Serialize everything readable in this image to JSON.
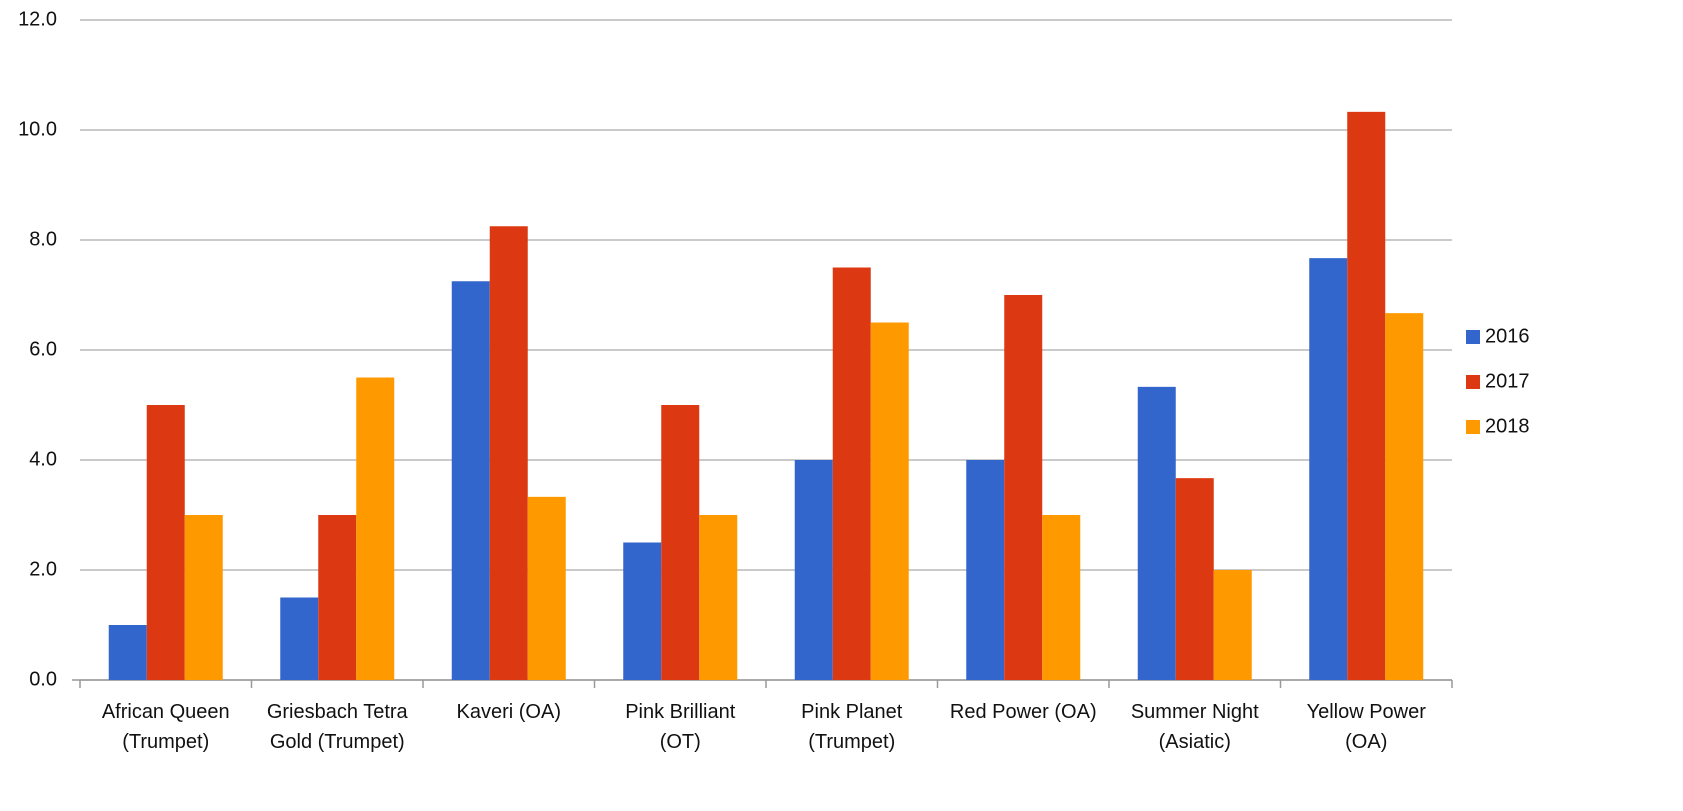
{
  "chart_data": {
    "type": "bar",
    "categories": [
      "African Queen (Trumpet)",
      "Griesbach Tetra Gold (Trumpet)",
      "Kaveri (OA)",
      "Pink Brilliant (OT)",
      "Pink Planet (Trumpet)",
      "Red Power (OA)",
      "Summer Night (Asiatic)",
      "Yellow Power (OA)"
    ],
    "series": [
      {
        "name": "2016",
        "color": "#3366cc",
        "values": [
          1.0,
          1.5,
          7.25,
          2.5,
          4.0,
          4.0,
          5.33,
          7.67
        ]
      },
      {
        "name": "2017",
        "color": "#dc3912",
        "values": [
          5.0,
          3.0,
          8.25,
          5.0,
          7.5,
          7.0,
          3.67,
          10.33
        ]
      },
      {
        "name": "2018",
        "color": "#ff9900",
        "values": [
          3.0,
          5.5,
          3.33,
          3.0,
          6.5,
          3.0,
          2.0,
          6.67
        ]
      }
    ],
    "ylim": [
      0,
      12
    ],
    "yticks": [
      {
        "value": 0,
        "label": "0.0"
      },
      {
        "value": 2,
        "label": "2.0"
      },
      {
        "value": 4,
        "label": "4.0"
      },
      {
        "value": 6,
        "label": "6.0"
      },
      {
        "value": 8,
        "label": "8.0"
      },
      {
        "value": 10,
        "label": "10.0"
      },
      {
        "value": 12,
        "label": "12.0"
      }
    ],
    "grid": true,
    "legend": "right"
  }
}
